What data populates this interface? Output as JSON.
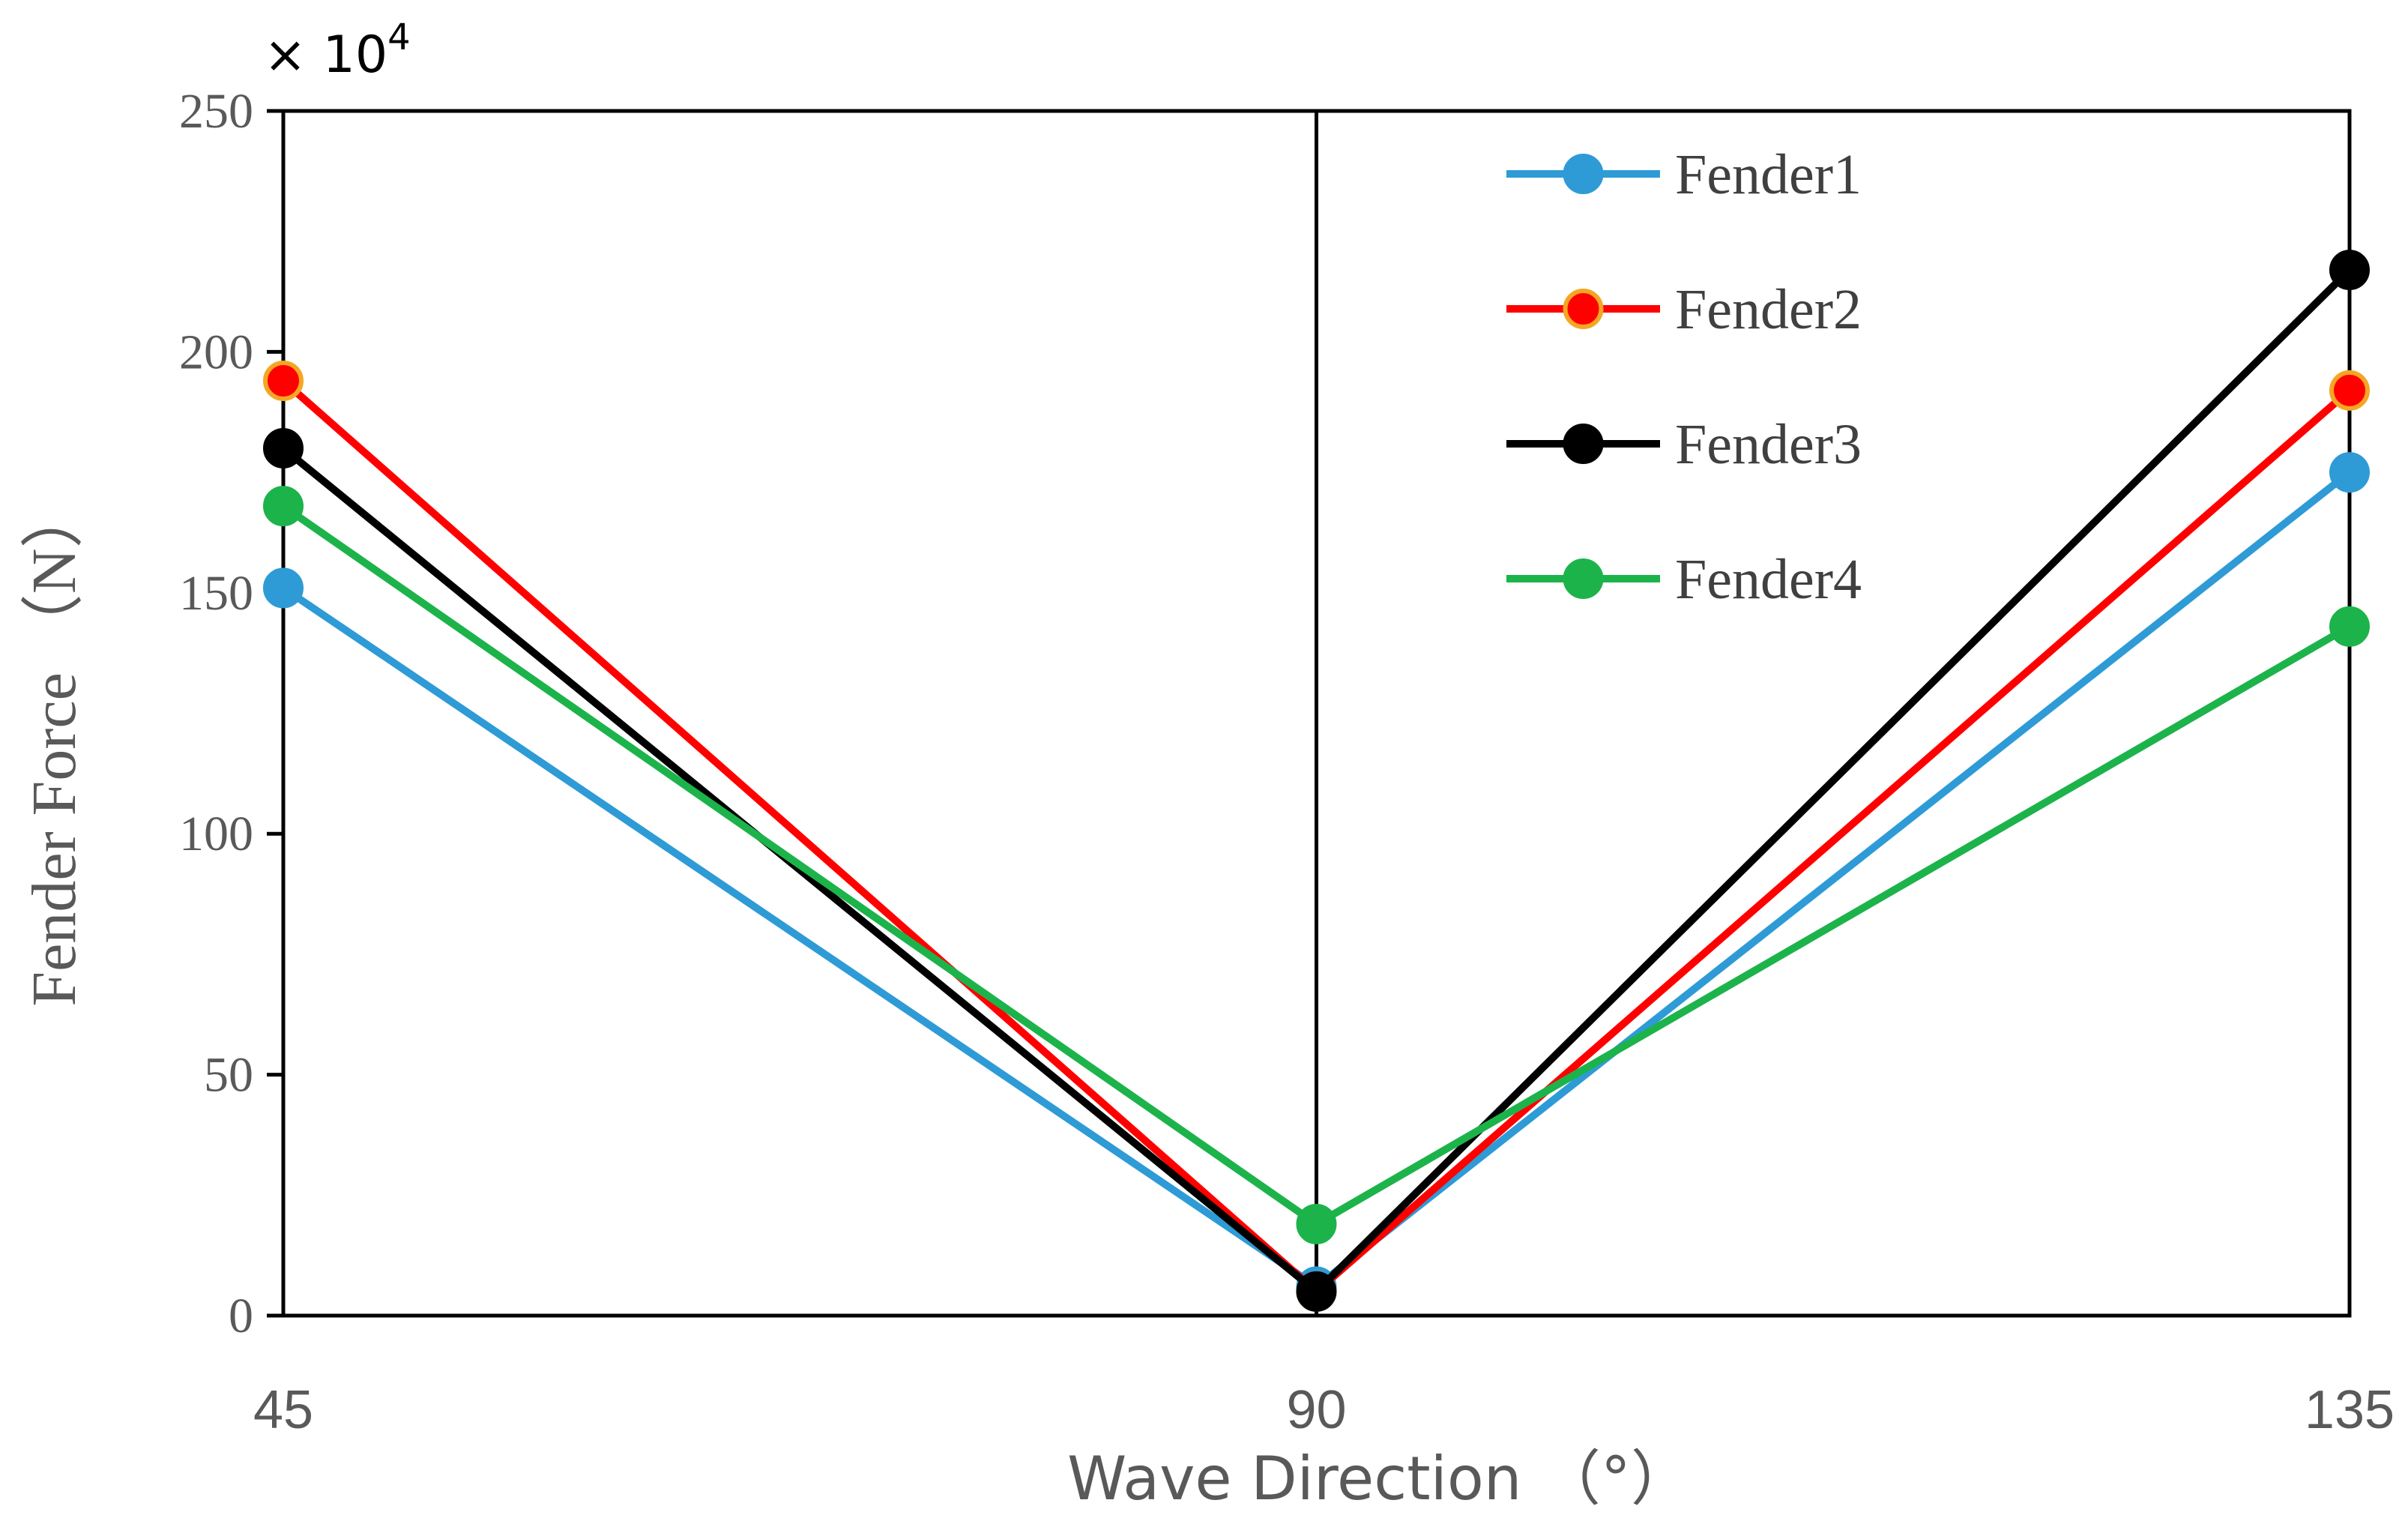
{
  "chart_data": {
    "type": "line",
    "title": "",
    "xlabel": "Wave Direction （°）",
    "ylabel": "Fender Force （N）",
    "y_multiplier": "× 10",
    "y_multiplier_exp": "4",
    "x": [
      45,
      90,
      135
    ],
    "x_tick_labels": [
      "45",
      "90",
      "135"
    ],
    "y_ticks": [
      0,
      50,
      100,
      150,
      200,
      250
    ],
    "y_tick_labels": [
      "0",
      "50",
      "100",
      "150",
      "200",
      "250"
    ],
    "ylim": [
      0,
      250
    ],
    "legend_position": "top-right",
    "grid": false,
    "series": [
      {
        "name": "Fender1",
        "color": "#2e9bd6",
        "marker_edge": "#2e9bd6",
        "values": [
          151,
          6,
          175
        ]
      },
      {
        "name": "Fender2",
        "color": "#ff0000",
        "marker_edge": "#f5a623",
        "values": [
          194,
          5,
          192
        ]
      },
      {
        "name": "Fender3",
        "color": "#000000",
        "marker_edge": "#000000",
        "values": [
          180,
          5,
          217
        ]
      },
      {
        "name": "Fender4",
        "color": "#1db34b",
        "marker_edge": "#1db34b",
        "values": [
          168,
          19,
          143
        ]
      }
    ]
  }
}
